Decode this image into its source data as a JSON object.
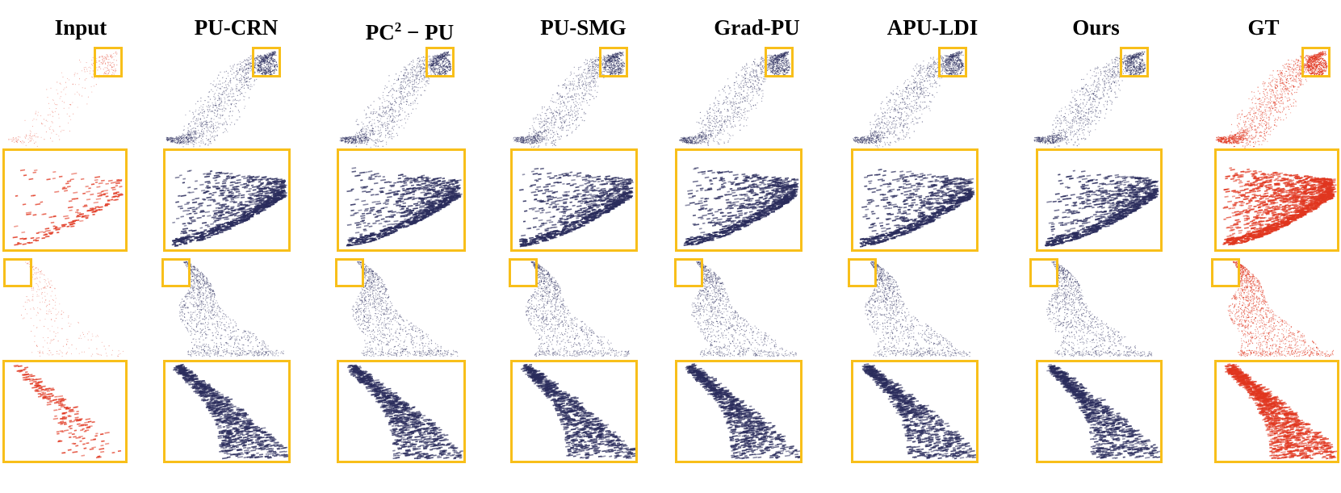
{
  "figure": {
    "columns": [
      {
        "key": "input",
        "label": "Input",
        "color": "#e0361f"
      },
      {
        "key": "pucrn",
        "label": "PU-CRN",
        "color": "#2a2c5c"
      },
      {
        "key": "pc2pu",
        "label_main": "PC",
        "label_sup": "2",
        "label_rest": " − PU",
        "color": "#2a2c5c"
      },
      {
        "key": "pusmg",
        "label": "PU-SMG",
        "color": "#2a2c5c"
      },
      {
        "key": "gradpu",
        "label": "Grad-PU",
        "color": "#2a2c5c"
      },
      {
        "key": "apuldi",
        "label": "APU-LDI",
        "color": "#2a2c5c"
      },
      {
        "key": "ours",
        "label": "Ours",
        "color": "#2a2c5c"
      },
      {
        "key": "gt",
        "label": "GT",
        "color": "#e0361f"
      }
    ],
    "highlight_color": "#f8bf1a",
    "rows": [
      {
        "name": "shape-1-full"
      },
      {
        "name": "shape-1-zoom"
      },
      {
        "name": "shape-2-full"
      },
      {
        "name": "shape-2-zoom"
      }
    ]
  }
}
